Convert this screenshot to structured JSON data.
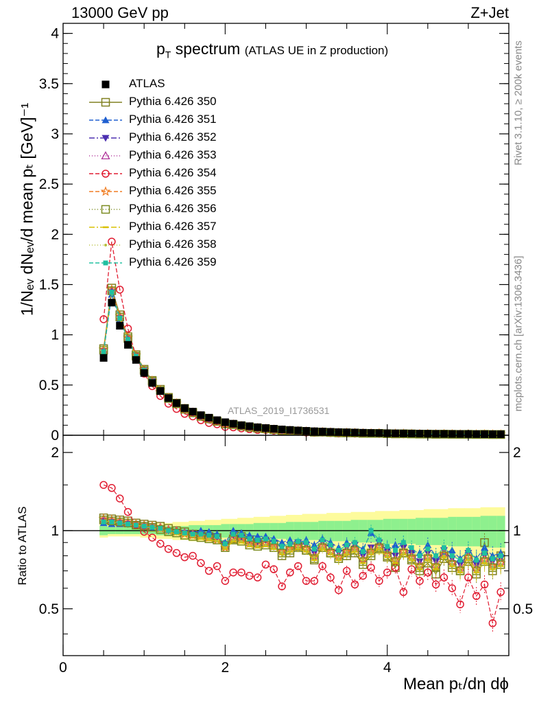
{
  "header": {
    "energy_label": "13000 GeV pp",
    "process_label": "Z+Jet"
  },
  "labels": {
    "title_main": "p",
    "title_sub": "T",
    "title_rest": " spectrum",
    "title_note": "(ATLAS UE in Z production)",
    "y_axis": "1/Nₑᵥ dNₑᵥ/d mean pₜ [GeV]⁻¹",
    "ratio_axis": "Ratio to ATLAS",
    "x_axis": "Mean pₜ/dη dϕ",
    "side_rivet": "Rivet 3.1.10, ≥ 200k events",
    "side_mcplots": "mcplots.cern.ch [arXiv:1306.3436]",
    "analysis": "ATLAS_2019_I1736531"
  },
  "legend": [
    {
      "label": "ATLAS",
      "color": "#000000",
      "marker": "filled-square",
      "line": "none"
    },
    {
      "label": "Pythia 6.426 350",
      "color": "#808020",
      "marker": "open-square",
      "line": "solid"
    },
    {
      "label": "Pythia 6.426 351",
      "color": "#1f5fd0",
      "marker": "filled-triangle-up",
      "line": "dashed"
    },
    {
      "label": "Pythia 6.426 352",
      "color": "#4b2fb0",
      "marker": "filled-triangle-down",
      "line": "dashdot"
    },
    {
      "label": "Pythia 6.426 353",
      "color": "#b0359a",
      "marker": "open-triangle-up",
      "line": "dotted"
    },
    {
      "label": "Pythia 6.426 354",
      "color": "#e01b30",
      "marker": "open-circle",
      "line": "dashed"
    },
    {
      "label": "Pythia 6.426 355",
      "color": "#f07c20",
      "marker": "open-star",
      "line": "dashed"
    },
    {
      "label": "Pythia 6.426 356",
      "color": "#7a8a20",
      "marker": "open-square",
      "line": "dotted"
    },
    {
      "label": "Pythia 6.426 357",
      "color": "#d8c000",
      "marker": "small-dash",
      "line": "dashdot"
    },
    {
      "label": "Pythia 6.426 358",
      "color": "#b8c040",
      "marker": "small-dot",
      "line": "dotted"
    },
    {
      "label": "Pythia 6.426 359",
      "color": "#20c0a0",
      "marker": "filled-square-small",
      "line": "dashed"
    }
  ],
  "chart_data": {
    "type": "scatter",
    "title": "pT spectrum (ATLAS UE in Z production)",
    "xlabel": "Mean pT/dη dϕ",
    "ylabel": "1/Nev dNev/d mean pT [GeV]^-1",
    "xlim": [
      0,
      5.5
    ],
    "ylim": [
      0,
      4.1
    ],
    "ratio_ylim": [
      0.33,
      2.33
    ],
    "x_ticks": [
      0,
      2,
      4
    ],
    "y_ticks": [
      0,
      0.5,
      1,
      1.5,
      2,
      2.5,
      3,
      3.5,
      4
    ],
    "ratio_ticks": [
      0.5,
      1,
      2
    ],
    "x": [
      0.5,
      0.6,
      0.7,
      0.8,
      0.9,
      1.0,
      1.1,
      1.2,
      1.3,
      1.4,
      1.5,
      1.6,
      1.7,
      1.8,
      1.9,
      2.0,
      2.1,
      2.2,
      2.3,
      2.4,
      2.5,
      2.6,
      2.7,
      2.8,
      2.9,
      3.0,
      3.1,
      3.2,
      3.3,
      3.4,
      3.5,
      3.6,
      3.7,
      3.8,
      3.9,
      4.0,
      4.1,
      4.2,
      4.3,
      4.4,
      4.5,
      4.6,
      4.7,
      4.8,
      4.9,
      5.0,
      5.1,
      5.2,
      5.3,
      5.4
    ],
    "atlas": [
      0.77,
      1.32,
      1.09,
      0.9,
      0.75,
      0.62,
      0.52,
      0.44,
      0.37,
      0.32,
      0.27,
      0.235,
      0.2,
      0.175,
      0.15,
      0.13,
      0.115,
      0.1,
      0.09,
      0.08,
      0.072,
      0.065,
      0.058,
      0.053,
      0.048,
      0.044,
      0.04,
      0.037,
      0.034,
      0.031,
      0.029,
      0.027,
      0.025,
      0.023,
      0.022,
      0.02,
      0.019,
      0.018,
      0.017,
      0.016,
      0.015,
      0.014,
      0.0135,
      0.013,
      0.0125,
      0.012,
      0.0115,
      0.011,
      0.0105,
      0.01
    ],
    "band_outer": [
      0.06,
      0.05,
      0.05,
      0.05,
      0.05,
      0.06,
      0.06,
      0.07,
      0.07,
      0.08,
      0.08,
      0.09,
      0.09,
      0.1,
      0.1,
      0.11,
      0.11,
      0.12,
      0.12,
      0.13,
      0.13,
      0.14,
      0.14,
      0.15,
      0.15,
      0.16,
      0.16,
      0.16,
      0.17,
      0.17,
      0.17,
      0.18,
      0.18,
      0.18,
      0.19,
      0.19,
      0.19,
      0.2,
      0.2,
      0.2,
      0.21,
      0.21,
      0.21,
      0.22,
      0.22,
      0.22,
      0.22,
      0.23,
      0.23,
      0.23
    ],
    "band_inner": [
      0.04,
      0.03,
      0.03,
      0.03,
      0.03,
      0.03,
      0.03,
      0.04,
      0.04,
      0.04,
      0.04,
      0.05,
      0.05,
      0.05,
      0.05,
      0.06,
      0.06,
      0.06,
      0.06,
      0.07,
      0.07,
      0.07,
      0.07,
      0.08,
      0.08,
      0.08,
      0.08,
      0.09,
      0.09,
      0.09,
      0.09,
      0.1,
      0.1,
      0.1,
      0.1,
      0.11,
      0.11,
      0.11,
      0.11,
      0.12,
      0.12,
      0.12,
      0.12,
      0.13,
      0.13,
      0.13,
      0.13,
      0.14,
      0.14,
      0.14
    ],
    "series": [
      {
        "name": "Pythia 6.426 350",
        "color": "#808020",
        "marker": "open-square",
        "dash": "",
        "ratio": [
          1.12,
          1.11,
          1.1,
          1.09,
          1.07,
          1.06,
          1.05,
          1.04,
          1.02,
          1.0,
          0.99,
          0.97,
          0.96,
          0.95,
          0.94,
          0.88,
          0.93,
          0.95,
          0.92,
          0.9,
          0.9,
          0.88,
          0.8,
          0.82,
          0.87,
          0.84,
          0.77,
          0.86,
          0.82,
          0.78,
          0.8,
          0.82,
          0.74,
          0.8,
          0.85,
          0.79,
          0.72,
          0.82,
          0.77,
          0.7,
          0.75,
          0.68,
          0.78,
          0.72,
          0.7,
          0.76,
          0.68,
          0.9,
          0.7,
          0.8
        ]
      },
      {
        "name": "Pythia 6.426 351",
        "color": "#1f5fd0",
        "marker": "filled-triangle-up",
        "dash": "6,3",
        "ratio": [
          1.07,
          1.06,
          1.06,
          1.06,
          1.05,
          1.04,
          1.03,
          1.02,
          1.01,
          1.0,
          0.99,
          0.98,
          1.0,
          0.99,
          0.97,
          0.9,
          1.0,
          0.98,
          0.96,
          0.95,
          0.95,
          0.93,
          0.9,
          0.92,
          0.9,
          0.92,
          0.88,
          0.93,
          0.9,
          0.86,
          0.9,
          0.88,
          0.85,
          0.98,
          0.9,
          0.86,
          0.88,
          0.9,
          0.84,
          0.82,
          0.88,
          0.8,
          0.82,
          0.84,
          0.78,
          0.84,
          0.78,
          0.86,
          0.8,
          0.82
        ]
      },
      {
        "name": "Pythia 6.426 352",
        "color": "#4b2fb0",
        "marker": "filled-triangle-down",
        "dash": "8,3,2,3",
        "ratio": [
          1.09,
          1.08,
          1.07,
          1.06,
          1.05,
          1.04,
          1.03,
          1.02,
          1.0,
          0.99,
          0.98,
          0.97,
          0.96,
          0.95,
          0.94,
          0.88,
          0.96,
          0.94,
          0.92,
          0.9,
          0.92,
          0.9,
          0.86,
          0.88,
          0.9,
          0.88,
          0.82,
          0.9,
          0.86,
          0.82,
          0.86,
          0.88,
          0.8,
          0.86,
          0.9,
          0.84,
          0.8,
          0.86,
          0.82,
          0.76,
          0.82,
          0.76,
          0.84,
          0.78,
          0.74,
          0.82,
          0.74,
          0.8,
          0.76,
          0.78
        ]
      },
      {
        "name": "Pythia 6.426 353",
        "color": "#b0359a",
        "marker": "open-triangle-up",
        "dash": "1,3",
        "ratio": [
          1.1,
          1.09,
          1.08,
          1.07,
          1.06,
          1.05,
          1.04,
          1.03,
          1.01,
          1.0,
          0.98,
          0.97,
          0.96,
          0.94,
          0.93,
          0.87,
          0.94,
          0.93,
          0.9,
          0.89,
          0.9,
          0.88,
          0.84,
          0.86,
          0.88,
          0.86,
          0.8,
          0.88,
          0.84,
          0.8,
          0.84,
          0.86,
          0.78,
          0.84,
          0.88,
          0.82,
          0.78,
          0.84,
          0.8,
          0.74,
          0.8,
          0.74,
          0.82,
          0.76,
          0.72,
          0.8,
          0.72,
          0.78,
          0.74,
          0.76
        ]
      },
      {
        "name": "Pythia 6.426 354",
        "color": "#e01b30",
        "marker": "open-circle",
        "dash": "6,3",
        "ratio": [
          1.5,
          1.46,
          1.33,
          1.18,
          1.05,
          0.99,
          0.94,
          0.89,
          0.85,
          0.82,
          0.79,
          0.8,
          0.75,
          0.7,
          0.73,
          0.64,
          0.69,
          0.69,
          0.67,
          0.66,
          0.74,
          0.71,
          0.61,
          0.69,
          0.73,
          0.64,
          0.64,
          0.73,
          0.66,
          0.59,
          0.7,
          0.62,
          0.67,
          0.72,
          0.64,
          0.69,
          0.72,
          0.58,
          0.71,
          0.64,
          0.69,
          0.62,
          0.66,
          0.6,
          0.52,
          0.66,
          0.56,
          0.62,
          0.44,
          0.58
        ]
      },
      {
        "name": "Pythia 6.426 355",
        "color": "#f07c20",
        "marker": "open-star",
        "dash": "6,3",
        "ratio": [
          1.11,
          1.1,
          1.09,
          1.08,
          1.06,
          1.05,
          1.04,
          1.02,
          1.0,
          0.99,
          0.97,
          0.96,
          0.95,
          0.94,
          0.92,
          0.86,
          0.93,
          0.92,
          0.89,
          0.88,
          0.89,
          0.87,
          0.83,
          0.85,
          0.87,
          0.85,
          0.79,
          0.87,
          0.83,
          0.79,
          0.83,
          0.85,
          0.77,
          0.83,
          0.87,
          0.81,
          0.77,
          0.83,
          0.79,
          0.73,
          0.79,
          0.73,
          0.81,
          0.75,
          0.71,
          0.79,
          0.71,
          0.77,
          0.73,
          0.75
        ]
      },
      {
        "name": "Pythia 6.426 356",
        "color": "#7a8a20",
        "marker": "open-square",
        "dash": "1,3",
        "ratio": [
          1.1,
          1.09,
          1.08,
          1.07,
          1.05,
          1.04,
          1.03,
          1.01,
          0.99,
          0.98,
          0.96,
          0.95,
          0.94,
          0.93,
          0.92,
          0.86,
          0.92,
          0.91,
          0.88,
          0.87,
          0.88,
          0.86,
          0.82,
          0.84,
          0.86,
          0.84,
          0.78,
          0.86,
          0.82,
          0.78,
          0.82,
          0.84,
          0.76,
          0.82,
          0.86,
          0.8,
          0.76,
          0.82,
          0.78,
          0.72,
          0.78,
          0.72,
          0.8,
          0.74,
          0.7,
          0.78,
          0.7,
          0.76,
          0.72,
          0.74
        ]
      },
      {
        "name": "Pythia 6.426 357",
        "color": "#d8c000",
        "marker": "small-dash",
        "dash": "8,3,2,3",
        "ratio": [
          1.09,
          1.08,
          1.07,
          1.06,
          1.05,
          1.04,
          1.02,
          1.01,
          0.99,
          0.97,
          0.96,
          0.95,
          0.93,
          0.92,
          0.91,
          0.85,
          0.91,
          0.9,
          0.87,
          0.86,
          0.87,
          0.85,
          0.81,
          0.83,
          0.85,
          0.83,
          0.77,
          0.85,
          0.81,
          0.77,
          0.81,
          0.83,
          0.75,
          0.81,
          0.85,
          0.79,
          0.75,
          0.81,
          0.77,
          0.71,
          0.77,
          0.71,
          0.79,
          0.73,
          0.69,
          0.77,
          0.69,
          0.75,
          0.71,
          0.73
        ]
      },
      {
        "name": "Pythia 6.426 358",
        "color": "#b8c040",
        "marker": "small-dot",
        "dash": "1,3",
        "ratio": [
          1.08,
          1.07,
          1.06,
          1.05,
          1.04,
          1.03,
          1.02,
          1.0,
          0.99,
          0.97,
          0.96,
          0.95,
          0.94,
          0.93,
          0.91,
          0.86,
          0.92,
          0.91,
          0.88,
          0.87,
          0.88,
          0.86,
          0.82,
          0.84,
          0.86,
          0.84,
          0.79,
          0.86,
          0.82,
          0.78,
          0.82,
          0.84,
          0.77,
          0.82,
          0.86,
          0.8,
          0.77,
          0.82,
          0.78,
          0.72,
          0.78,
          0.73,
          0.8,
          0.74,
          0.7,
          0.78,
          0.7,
          0.76,
          0.72,
          0.74
        ]
      },
      {
        "name": "Pythia 6.426 359",
        "color": "#20c0a0",
        "marker": "filled-square-small",
        "dash": "6,3",
        "ratio": [
          1.08,
          1.08,
          1.07,
          1.06,
          1.05,
          1.04,
          1.03,
          1.02,
          1.0,
          0.99,
          0.98,
          0.97,
          0.97,
          0.96,
          0.95,
          0.89,
          0.97,
          0.96,
          0.93,
          0.92,
          0.93,
          0.91,
          0.87,
          0.89,
          0.91,
          0.9,
          0.85,
          0.92,
          0.88,
          0.84,
          0.88,
          0.9,
          0.83,
          1.0,
          0.92,
          0.87,
          0.84,
          0.9,
          0.86,
          0.8,
          0.85,
          0.8,
          0.86,
          0.8,
          0.77,
          0.84,
          0.77,
          0.82,
          0.78,
          0.8
        ]
      }
    ]
  }
}
